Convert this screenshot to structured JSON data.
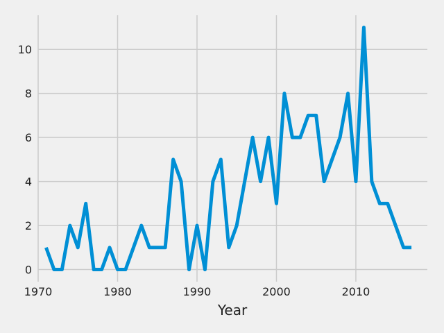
{
  "chart_data": {
    "type": "line",
    "title": "",
    "xlabel": "Year",
    "ylabel": "",
    "xlim": [
      1970,
      2019
    ],
    "ylim": [
      -0.55,
      11.55
    ],
    "x_ticks": [
      1970,
      1980,
      1990,
      2000,
      2010
    ],
    "y_ticks": [
      0,
      2,
      4,
      6,
      8,
      10
    ],
    "grid": true,
    "legend": "none",
    "series": [
      {
        "color": "#008fd5",
        "x": [
          1971,
          1972,
          1973,
          1974,
          1975,
          1976,
          1977,
          1978,
          1979,
          1980,
          1981,
          1982,
          1983,
          1984,
          1985,
          1986,
          1987,
          1988,
          1989,
          1990,
          1991,
          1992,
          1993,
          1994,
          1995,
          1996,
          1997,
          1998,
          1999,
          2000,
          2001,
          2002,
          2003,
          2004,
          2005,
          2006,
          2007,
          2008,
          2009,
          2010,
          2011,
          2012,
          2013,
          2014,
          2015,
          2016,
          2017
        ],
        "values": [
          1,
          0,
          0,
          2,
          1,
          3,
          0,
          0,
          1,
          0,
          0,
          1,
          2,
          1,
          1,
          1,
          5,
          4,
          0,
          2,
          0,
          4,
          5,
          1,
          2,
          4,
          6,
          4,
          6,
          3,
          8,
          6,
          6,
          7,
          7,
          4,
          5,
          6,
          8,
          4,
          11,
          4,
          3,
          3,
          2,
          1,
          1
        ]
      }
    ]
  }
}
